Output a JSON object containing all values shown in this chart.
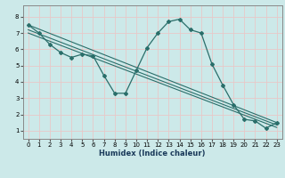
{
  "xlabel": "Humidex (Indice chaleur)",
  "background_color": "#cce9e9",
  "grid_color": "#e8c8c8",
  "line_color": "#2a6e6a",
  "xlim": [
    -0.5,
    23.5
  ],
  "ylim": [
    0.5,
    8.7
  ],
  "xticks": [
    0,
    1,
    2,
    3,
    4,
    5,
    6,
    7,
    8,
    9,
    10,
    11,
    12,
    13,
    14,
    15,
    16,
    17,
    18,
    19,
    20,
    21,
    22,
    23
  ],
  "yticks": [
    1,
    2,
    3,
    4,
    5,
    6,
    7,
    8
  ],
  "main_line": {
    "x": [
      0,
      1,
      2,
      3,
      4,
      5,
      6,
      7,
      8,
      9,
      10,
      11,
      12,
      13,
      14,
      15,
      16,
      17,
      18,
      19,
      20,
      21,
      22,
      23
    ],
    "y": [
      7.5,
      7.0,
      6.3,
      5.8,
      5.5,
      5.7,
      5.6,
      4.4,
      3.3,
      3.3,
      4.7,
      6.1,
      7.0,
      7.7,
      7.85,
      7.2,
      7.0,
      5.1,
      3.8,
      2.6,
      1.7,
      1.6,
      1.15,
      1.5
    ]
  },
  "straight_lines": [
    {
      "x0": 0,
      "y0": 7.5,
      "x1": 23,
      "y1": 1.5
    },
    {
      "x0": 0,
      "y0": 7.2,
      "x1": 23,
      "y1": 1.35
    },
    {
      "x0": 0,
      "y0": 7.0,
      "x1": 23,
      "y1": 1.2
    }
  ]
}
